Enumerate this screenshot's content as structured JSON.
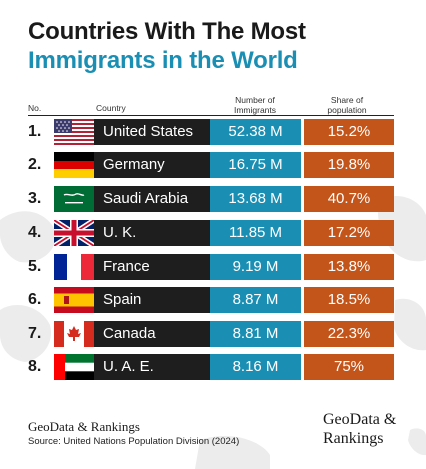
{
  "title_line1": "Countries With The Most",
  "title_line2": "Immigrants in the World",
  "headers": {
    "no": "No.",
    "country": "Country",
    "num_line1": "Number of",
    "num_line2": "Immigrants",
    "share_line1": "Share of",
    "share_line2": "population"
  },
  "rows": [
    {
      "rank": "1.",
      "country": "United States",
      "immigrants": "52.38 M",
      "share": "15.2%",
      "flag": "us-flag"
    },
    {
      "rank": "2.",
      "country": "Germany",
      "immigrants": "16.75 M",
      "share": "19.8%",
      "flag": "germany-flag"
    },
    {
      "rank": "3.",
      "country": "Saudi Arabia",
      "immigrants": "13.68 M",
      "share": "40.7%",
      "flag": "saudi-arabia-flag"
    },
    {
      "rank": "4.",
      "country": "U. K.",
      "immigrants": "11.85 M",
      "share": "17.2%",
      "flag": "uk-flag"
    },
    {
      "rank": "5.",
      "country": "France",
      "immigrants": "9.19 M",
      "share": "13.8%",
      "flag": "france-flag"
    },
    {
      "rank": "6.",
      "country": "Spain",
      "immigrants": "8.87 M",
      "share": "18.5%",
      "flag": "spain-flag"
    },
    {
      "rank": "7.",
      "country": "Canada",
      "immigrants": "8.81 M",
      "share": "22.3%",
      "flag": "canada-flag"
    },
    {
      "rank": "8.",
      "country": "U. A. E.",
      "immigrants": "8.16 M",
      "share": "75%",
      "flag": "uae-flag"
    }
  ],
  "chart_data": {
    "type": "table",
    "title": "Countries With The Most Immigrants in the World",
    "columns": [
      "No.",
      "Country",
      "Number of Immigrants",
      "Share of population"
    ],
    "categories": [
      "United States",
      "Germany",
      "Saudi Arabia",
      "U. K.",
      "France",
      "Spain",
      "Canada",
      "U. A. E."
    ],
    "series": [
      {
        "name": "Number of Immigrants",
        "values": [
          52.38,
          16.75,
          13.68,
          11.85,
          9.19,
          8.87,
          8.81,
          8.16
        ],
        "unit": "M"
      },
      {
        "name": "Share of population",
        "values": [
          15.2,
          19.8,
          40.7,
          17.2,
          13.8,
          18.5,
          22.3,
          75
        ],
        "unit": "%"
      }
    ]
  },
  "colors": {
    "title_accent": "#1b8fb3",
    "country_cell": "#1e1e1e",
    "immigrants_cell": "#1b8fb3",
    "share_cell": "#c4551a"
  },
  "footer": {
    "brand_left": "GeoData & Rankings",
    "source": "Source: United Nations Population Division (2024)",
    "brand_right_line1": "GeoData &",
    "brand_right_line2": "Rankings"
  }
}
